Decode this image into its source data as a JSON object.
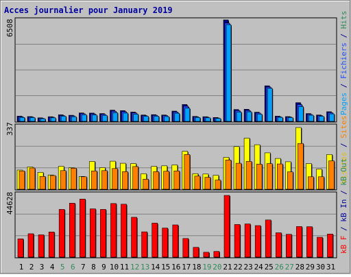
{
  "title": "Acces journalier pour January 2019",
  "right_legend": {
    "top": [
      {
        "text": "Pages",
        "color": "#00a0ff"
      },
      {
        "text": " / ",
        "color": "#000080"
      },
      {
        "text": "Fichiers",
        "color": "#2050ff"
      },
      {
        "text": " / ",
        "color": "#000080"
      },
      {
        "text": "Hits",
        "color": "#2e8b57"
      }
    ],
    "middle": [
      {
        "text": "Visites",
        "color": "#e0c000"
      },
      {
        "text": " / ",
        "color": "#000080"
      },
      {
        "text": "Sites",
        "color": "#ff8000"
      }
    ],
    "bottom": [
      {
        "text": "kB F",
        "color": "#ff0000"
      },
      {
        "text": " / ",
        "color": "#000080"
      },
      {
        "text": "kB In",
        "color": "#0000a0"
      },
      {
        "text": " / ",
        "color": "#000080"
      },
      {
        "text": "kB Out",
        "color": "#2e8b57"
      }
    ]
  },
  "chart_data": [
    {
      "type": "bar",
      "title": "Acces journalier pour January 2019",
      "ylabel_max": "6508",
      "ylim": [
        0,
        6508
      ],
      "categories": [
        "1",
        "2",
        "3",
        "4",
        "5",
        "6",
        "7",
        "8",
        "9",
        "10",
        "11",
        "12",
        "13",
        "14",
        "15",
        "16",
        "17",
        "18",
        "19",
        "20",
        "21",
        "22",
        "23",
        "24",
        "25",
        "26",
        "27",
        "28",
        "29",
        "30",
        "31"
      ],
      "weekend_days": [
        "5",
        "6",
        "12",
        "13",
        "19",
        "20",
        "26",
        "27"
      ],
      "series": [
        {
          "name": "Hits",
          "color": "#000080",
          "values": [
            340,
            310,
            230,
            300,
            420,
            390,
            540,
            530,
            500,
            720,
            690,
            600,
            410,
            430,
            410,
            660,
            1080,
            320,
            300,
            250,
            6508,
            760,
            780,
            590,
            2280,
            340,
            310,
            1200,
            500,
            410,
            620
          ]
        },
        {
          "name": "Fichiers",
          "color": "#2050ff",
          "values": [
            300,
            280,
            200,
            270,
            380,
            350,
            490,
            480,
            450,
            650,
            620,
            540,
            370,
            390,
            370,
            600,
            970,
            290,
            270,
            220,
            6300,
            690,
            700,
            530,
            2200,
            300,
            280,
            1080,
            450,
            370,
            560
          ]
        },
        {
          "name": "Pages",
          "color": "#00a0ff",
          "values": [
            250,
            240,
            170,
            230,
            330,
            300,
            420,
            410,
            380,
            560,
            530,
            460,
            320,
            330,
            310,
            520,
            850,
            250,
            230,
            190,
            6200,
            600,
            610,
            460,
            2120,
            260,
            240,
            950,
            390,
            320,
            480
          ]
        }
      ]
    },
    {
      "type": "bar",
      "ylabel_max": "337",
      "ylim": [
        0,
        337
      ],
      "categories": [
        "1",
        "2",
        "3",
        "4",
        "5",
        "6",
        "7",
        "8",
        "9",
        "10",
        "11",
        "12",
        "13",
        "14",
        "15",
        "16",
        "17",
        "18",
        "19",
        "20",
        "21",
        "22",
        "23",
        "24",
        "25",
        "26",
        "27",
        "28",
        "29",
        "30",
        "31"
      ],
      "series": [
        {
          "name": "Visites",
          "color": "#ffff00",
          "values": [
            105,
            122,
            92,
            78,
            125,
            118,
            70,
            152,
            118,
            153,
            142,
            140,
            85,
            125,
            128,
            133,
            207,
            85,
            83,
            76,
            174,
            233,
            279,
            243,
            199,
            168,
            150,
            337,
            140,
            110,
            190
          ]
        },
        {
          "name": "Sites",
          "color": "#ff8000",
          "values": [
            100,
            116,
            70,
            75,
            102,
            115,
            68,
            100,
            102,
            113,
            96,
            124,
            55,
            96,
            98,
            100,
            190,
            72,
            65,
            50,
            160,
            142,
            152,
            137,
            140,
            138,
            95,
            250,
            68,
            68,
            155
          ]
        }
      ]
    },
    {
      "type": "bar",
      "ylabel_max": "44628",
      "ylim": [
        0,
        44628
      ],
      "categories": [
        "1",
        "2",
        "3",
        "4",
        "5",
        "6",
        "7",
        "8",
        "9",
        "10",
        "11",
        "12",
        "13",
        "14",
        "15",
        "16",
        "17",
        "18",
        "19",
        "20",
        "21",
        "22",
        "23",
        "24",
        "25",
        "26",
        "27",
        "28",
        "29",
        "30",
        "31"
      ],
      "series": [
        {
          "name": "kB F",
          "color": "#ff0000",
          "values": [
            13200,
            16900,
            16100,
            18200,
            34500,
            39000,
            42000,
            34900,
            34500,
            38800,
            38300,
            28800,
            18300,
            24600,
            21000,
            23300,
            13500,
            7100,
            3500,
            4100,
            44628,
            23600,
            24000,
            22800,
            26900,
            17600,
            16500,
            22100,
            22000,
            14400,
            16700
          ]
        }
      ]
    }
  ]
}
